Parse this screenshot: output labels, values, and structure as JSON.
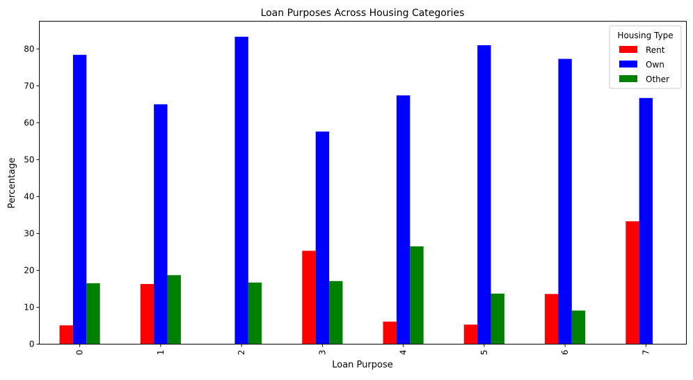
{
  "chart_data": {
    "type": "bar",
    "title": "Loan Purposes Across Housing Categories",
    "xlabel": "Loan Purpose",
    "ylabel": "Percentage",
    "categories": [
      "0",
      "1",
      "2",
      "3",
      "4",
      "5",
      "6",
      "7"
    ],
    "series": [
      {
        "name": "Rent",
        "color": "#ff0000",
        "values": [
          5.1,
          16.3,
          0,
          25.3,
          6.1,
          5.3,
          13.6,
          33.3
        ]
      },
      {
        "name": "Own",
        "color": "#0000ff",
        "values": [
          78.4,
          65.0,
          83.3,
          57.6,
          67.4,
          81.0,
          77.3,
          66.7
        ]
      },
      {
        "name": "Other",
        "color": "#008000",
        "values": [
          16.5,
          18.7,
          16.7,
          17.1,
          26.5,
          13.7,
          9.1,
          0
        ]
      }
    ],
    "ylim": [
      0,
      87.5
    ],
    "yticks": [
      "0",
      "10",
      "20",
      "30",
      "40",
      "50",
      "60",
      "70",
      "80"
    ],
    "legend": {
      "title": "Housing Type",
      "placement": "top-right"
    },
    "grid": false
  }
}
